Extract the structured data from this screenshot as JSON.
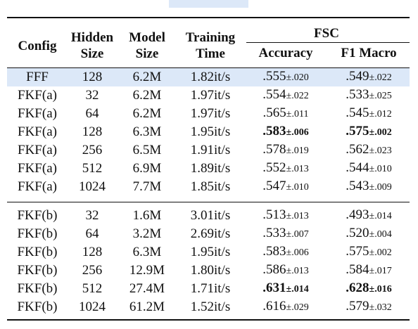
{
  "header_fragment": "",
  "table": {
    "columns": {
      "config": "Config",
      "hidden_size": "Hidden Size",
      "model_size": "Model Size",
      "training_time": "Training Time",
      "group": "FSC",
      "accuracy": "Accuracy",
      "f1_macro": "F1 Macro"
    },
    "rows_a": [
      {
        "config": "FFF",
        "hidden": "128",
        "model": "6.2M",
        "time": "1.82it/s",
        "acc": ".555",
        "acc_pm": "±.020",
        "f1": ".549",
        "f1_pm": "±.022",
        "highlight": true
      },
      {
        "config": "FKF(a)",
        "hidden": "32",
        "model": "6.2M",
        "time": "1.97it/s",
        "acc": ".554",
        "acc_pm": "±.022",
        "f1": ".533",
        "f1_pm": "±.025"
      },
      {
        "config": "FKF(a)",
        "hidden": "64",
        "model": "6.2M",
        "time": "1.97it/s",
        "acc": ".565",
        "acc_pm": "±.011",
        "f1": ".545",
        "f1_pm": "±.012"
      },
      {
        "config": "FKF(a)",
        "hidden": "128",
        "model": "6.3M",
        "time": "1.95it/s",
        "acc": ".583",
        "acc_pm": "±.006",
        "f1": ".575",
        "f1_pm": "±.002",
        "best": true
      },
      {
        "config": "FKF(a)",
        "hidden": "256",
        "model": "6.5M",
        "time": "1.91it/s",
        "acc": ".578",
        "acc_pm": "±.019",
        "f1": ".562",
        "f1_pm": "±.023"
      },
      {
        "config": "FKF(a)",
        "hidden": "512",
        "model": "6.9M",
        "time": "1.89it/s",
        "acc": ".552",
        "acc_pm": "±.013",
        "f1": ".544",
        "f1_pm": "±.010"
      },
      {
        "config": "FKF(a)",
        "hidden": "1024",
        "model": "7.7M",
        "time": "1.85it/s",
        "acc": ".547",
        "acc_pm": "±.010",
        "f1": ".543",
        "f1_pm": "±.009"
      }
    ],
    "rows_b": [
      {
        "config": "FKF(b)",
        "hidden": "32",
        "model": "1.6M",
        "time": "3.01it/s",
        "acc": ".513",
        "acc_pm": "±.013",
        "f1": ".493",
        "f1_pm": "±.014"
      },
      {
        "config": "FKF(b)",
        "hidden": "64",
        "model": "3.2M",
        "time": "2.69it/s",
        "acc": ".533",
        "acc_pm": "±.007",
        "f1": ".520",
        "f1_pm": "±.004"
      },
      {
        "config": "FKF(b)",
        "hidden": "128",
        "model": "6.3M",
        "time": "1.95it/s",
        "acc": ".583",
        "acc_pm": "±.006",
        "f1": ".575",
        "f1_pm": "±.002"
      },
      {
        "config": "FKF(b)",
        "hidden": "256",
        "model": "12.9M",
        "time": "1.80it/s",
        "acc": ".586",
        "acc_pm": "±.013",
        "f1": ".584",
        "f1_pm": "±.017"
      },
      {
        "config": "FKF(b)",
        "hidden": "512",
        "model": "27.4M",
        "time": "1.71it/s",
        "acc": ".631",
        "acc_pm": "±.014",
        "f1": ".628",
        "f1_pm": "±.016",
        "best": true
      },
      {
        "config": "FKF(b)",
        "hidden": "1024",
        "model": "61.2M",
        "time": "1.52it/s",
        "acc": ".616",
        "acc_pm": "±.029",
        "f1": ".579",
        "f1_pm": "±.032"
      }
    ]
  },
  "colors": {
    "highlight": "#dce8f8",
    "rule": "#111111"
  }
}
